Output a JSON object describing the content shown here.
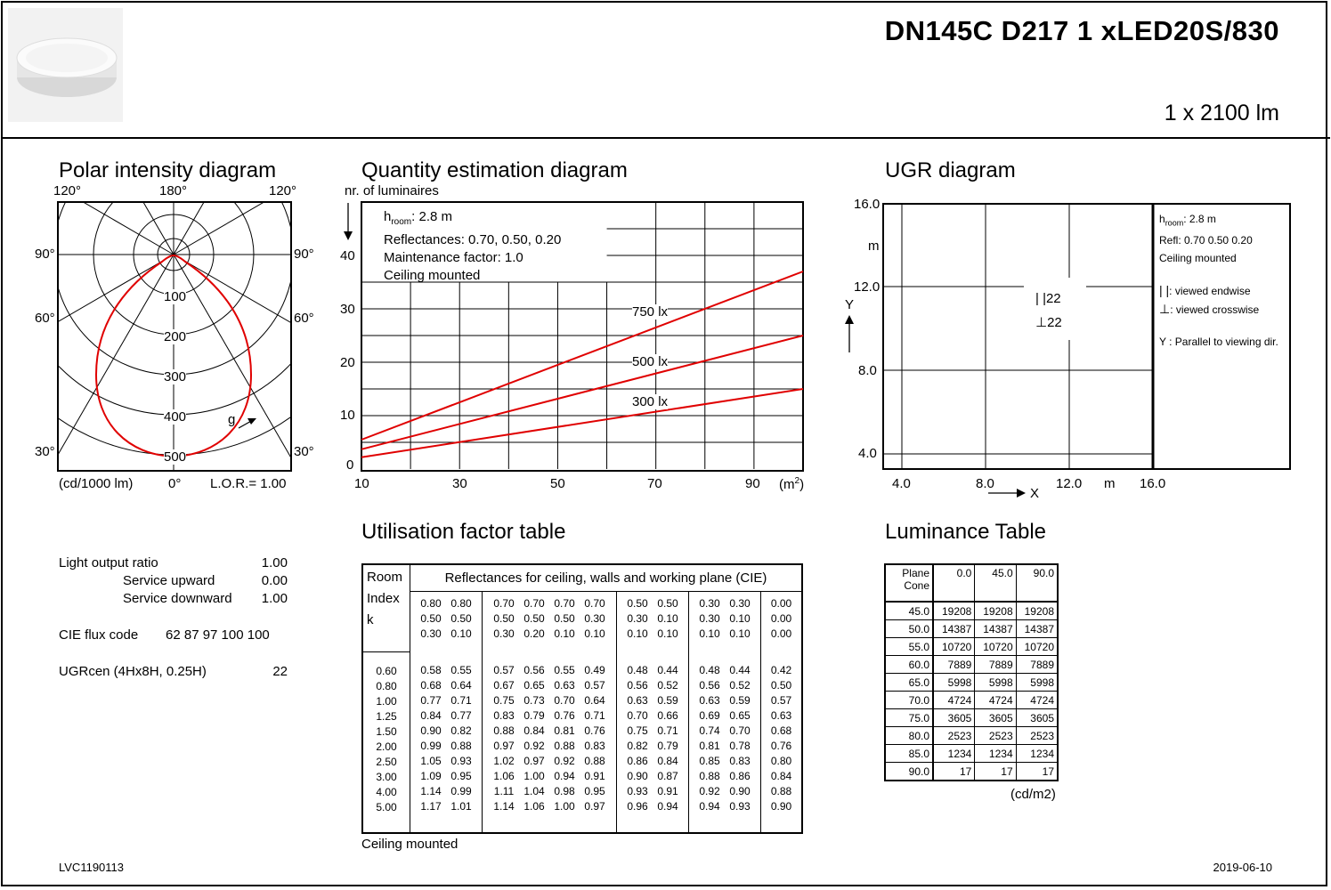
{
  "header": {
    "product_code": "DN145C D217 1 xLED20S/830",
    "flux": "1 x 2100 lm",
    "product_image": "ceiling-luminaire-photo"
  },
  "polar": {
    "title": "Polar intensity diagram",
    "angle_top_left": "120°",
    "angle_top_center": "180°",
    "angle_top_right": "120°",
    "angle_90_left": "90°",
    "angle_90_right": "90°",
    "angle_60_left": "60°",
    "angle_60_right": "60°",
    "angle_30_left": "30°",
    "angle_30_right": "30°",
    "rings": [
      "100",
      "200",
      "300",
      "400",
      "500"
    ],
    "gamma_label": "g",
    "unit": "(cd/1000 lm)",
    "angle_bottom": "0°",
    "lor": "L.O.R.= 1.00"
  },
  "quantity": {
    "title": "Quantity estimation diagram",
    "y_caption": "nr. of luminaires",
    "legend": {
      "h_prefix": "h",
      "h_sub": "room",
      "h_value": ": 2.8 m",
      "reflectances": "Reflectances: 0.70, 0.50, 0.20",
      "maintenance": "Maintenance factor: 1.0",
      "mounting": "Ceiling mounted"
    },
    "x_ticks": [
      "10",
      "30",
      "50",
      "70",
      "90"
    ],
    "x_unit_prefix": "(m",
    "x_unit_sup": "2",
    "x_unit_suffix": ")",
    "y_ticks": [
      "0",
      "10",
      "20",
      "30",
      "40"
    ]
  },
  "chart_data": {
    "type": "line",
    "xlabel": "(m2)",
    "ylabel": "nr. of luminaires",
    "xlim": [
      10,
      100
    ],
    "ylim": [
      0,
      50
    ],
    "series": [
      {
        "name": "750 lx",
        "x": [
          10,
          100
        ],
        "y": [
          5.5,
          37
        ],
        "color": "#e00000"
      },
      {
        "name": "500 lx",
        "x": [
          10,
          100
        ],
        "y": [
          3.7,
          25
        ],
        "color": "#e00000"
      },
      {
        "name": "300 lx",
        "x": [
          10,
          100
        ],
        "y": [
          2.2,
          15
        ],
        "color": "#e00000"
      }
    ]
  },
  "ugr": {
    "title": "UGR diagram",
    "y_ticks": [
      "16.0",
      "12.0",
      "8.0",
      "4.0"
    ],
    "y_unit": "m",
    "y_axis": "Y",
    "x_ticks": [
      "4.0",
      "8.0",
      "12.0",
      "16.0"
    ],
    "x_unit": "m",
    "x_axis": "X",
    "value_endwise": "22",
    "value_crosswise": "22",
    "legend": {
      "h_prefix": "h",
      "h_sub": "room",
      "h_value": ": 2.8 m",
      "refl": "Refl: 0.70 0.50 0.20",
      "mounting": "Ceiling mounted",
      "endwise": ": viewed endwise",
      "crosswise": ": viewed crosswise",
      "parallel": "Y   : Parallel to viewing dir."
    }
  },
  "properties": {
    "lor_label": "Light output ratio",
    "lor_value": "1.00",
    "up_label": "Service upward",
    "up_value": "0.00",
    "down_label": "Service downward",
    "down_value": "1.00",
    "cie_label": "CIE flux code",
    "cie_value": "62 87 97 100 100",
    "ugr_label": "UGRcen (4Hx8H, 0.25H)",
    "ugr_value": "22"
  },
  "utilisation": {
    "title": "Utilisation factor table",
    "header": "Reflectances for ceiling, walls and working plane (CIE)",
    "room_index_label": [
      "Room",
      "Index",
      "k"
    ],
    "groups": [
      {
        "ceiling": [
          "0.80",
          "0.80"
        ],
        "walls": [
          "0.50",
          "0.50"
        ],
        "floor": [
          "0.30",
          "0.10"
        ]
      },
      {
        "ceiling": [
          "0.70",
          "0.70",
          "0.70",
          "0.70"
        ],
        "walls": [
          "0.50",
          "0.50",
          "0.50",
          "0.30"
        ],
        "floor": [
          "0.30",
          "0.20",
          "0.10",
          "0.10"
        ]
      },
      {
        "ceiling": [
          "0.50",
          "0.50"
        ],
        "walls": [
          "0.30",
          "0.10"
        ],
        "floor": [
          "0.10",
          "0.10"
        ]
      },
      {
        "ceiling": [
          "0.30",
          "0.30"
        ],
        "walls": [
          "0.30",
          "0.10"
        ],
        "floor": [
          "0.10",
          "0.10"
        ]
      },
      {
        "ceiling": [
          "0.00"
        ],
        "walls": [
          "0.00"
        ],
        "floor": [
          "0.00"
        ]
      }
    ],
    "room_index": [
      "0.60",
      "0.80",
      "1.00",
      "1.25",
      "1.50",
      "2.00",
      "2.50",
      "3.00",
      "4.00",
      "5.00"
    ],
    "rows": [
      [
        "0.58",
        "0.55",
        "0.57",
        "0.56",
        "0.55",
        "0.49",
        "0.48",
        "0.44",
        "0.48",
        "0.44",
        "0.42"
      ],
      [
        "0.68",
        "0.64",
        "0.67",
        "0.65",
        "0.63",
        "0.57",
        "0.56",
        "0.52",
        "0.56",
        "0.52",
        "0.50"
      ],
      [
        "0.77",
        "0.71",
        "0.75",
        "0.73",
        "0.70",
        "0.64",
        "0.63",
        "0.59",
        "0.63",
        "0.59",
        "0.57"
      ],
      [
        "0.84",
        "0.77",
        "0.83",
        "0.79",
        "0.76",
        "0.71",
        "0.70",
        "0.66",
        "0.69",
        "0.65",
        "0.63"
      ],
      [
        "0.90",
        "0.82",
        "0.88",
        "0.84",
        "0.81",
        "0.76",
        "0.75",
        "0.71",
        "0.74",
        "0.70",
        "0.68"
      ],
      [
        "0.99",
        "0.88",
        "0.97",
        "0.92",
        "0.88",
        "0.83",
        "0.82",
        "0.79",
        "0.81",
        "0.78",
        "0.76"
      ],
      [
        "1.05",
        "0.93",
        "1.02",
        "0.97",
        "0.92",
        "0.88",
        "0.86",
        "0.84",
        "0.85",
        "0.83",
        "0.80"
      ],
      [
        "1.09",
        "0.95",
        "1.06",
        "1.00",
        "0.94",
        "0.91",
        "0.90",
        "0.87",
        "0.88",
        "0.86",
        "0.84"
      ],
      [
        "1.14",
        "0.99",
        "1.11",
        "1.04",
        "0.98",
        "0.95",
        "0.93",
        "0.91",
        "0.92",
        "0.90",
        "0.88"
      ],
      [
        "1.17",
        "1.01",
        "1.14",
        "1.06",
        "1.00",
        "0.97",
        "0.96",
        "0.94",
        "0.94",
        "0.93",
        "0.90"
      ]
    ],
    "footer": "Ceiling mounted"
  },
  "luminance": {
    "title": "Luminance Table",
    "corner_top": "Plane",
    "corner_bottom": "Cone",
    "planes": [
      "0.0",
      "45.0",
      "90.0"
    ],
    "rows": [
      [
        "45.0",
        "19208",
        "19208",
        "19208"
      ],
      [
        "50.0",
        "14387",
        "14387",
        "14387"
      ],
      [
        "55.0",
        "10720",
        "10720",
        "10720"
      ],
      [
        "60.0",
        "7889",
        "7889",
        "7889"
      ],
      [
        "65.0",
        "5998",
        "5998",
        "5998"
      ],
      [
        "70.0",
        "4724",
        "4724",
        "4724"
      ],
      [
        "75.0",
        "3605",
        "3605",
        "3605"
      ],
      [
        "80.0",
        "2523",
        "2523",
        "2523"
      ],
      [
        "85.0",
        "1234",
        "1234",
        "1234"
      ],
      [
        "90.0",
        "17",
        "17",
        "17"
      ]
    ],
    "unit": "(cd/m2)"
  },
  "footer": {
    "doc_id": "LVC1190113",
    "date": "2019-06-10"
  }
}
